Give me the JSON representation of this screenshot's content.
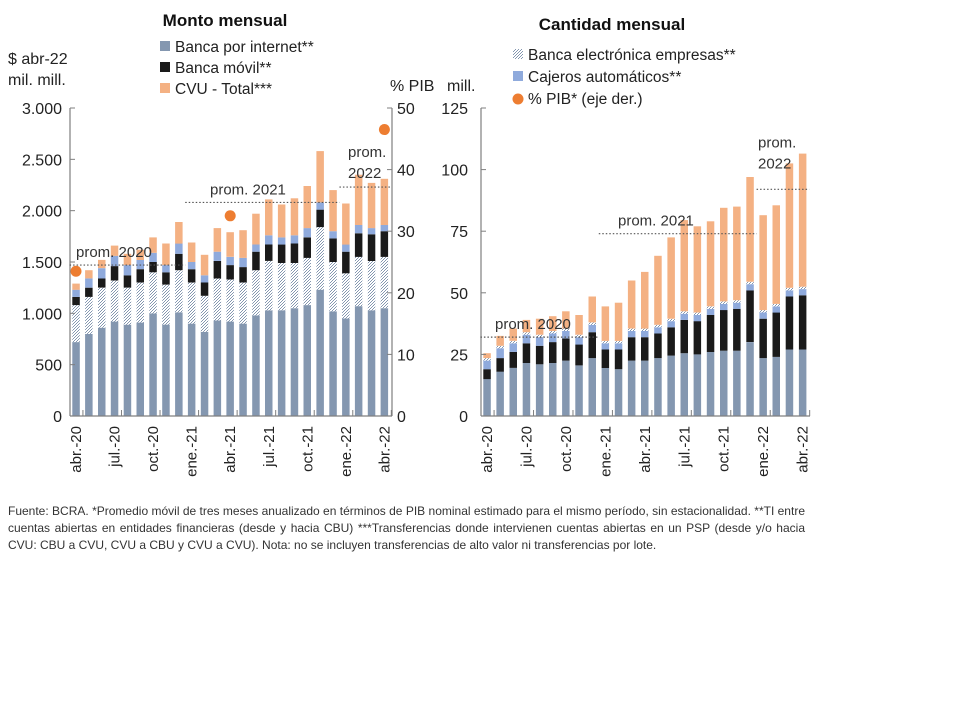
{
  "chart_data": [
    {
      "type": "bar",
      "stacked": true,
      "title": "Monto mensual",
      "ylabel": "$ abr-22 mil. mill.",
      "y2label": "% PIB",
      "ylim": [
        0,
        3000
      ],
      "y2lim": [
        0,
        50
      ],
      "yticks": [
        "0",
        "500",
        "1.000",
        "1.500",
        "2.000",
        "2.500",
        "3.000"
      ],
      "y2ticks": [
        "0",
        "10",
        "20",
        "30",
        "40",
        "50"
      ],
      "categories": [
        "abr.-20",
        "may.-20",
        "jun.-20",
        "jul.-20",
        "ago.-20",
        "sep.-20",
        "oct.-20",
        "nov.-20",
        "dic.-20",
        "ene.-21",
        "feb.-21",
        "mar.-21",
        "abr.-21",
        "may.-21",
        "jun.-21",
        "jul.-21",
        "ago.-21",
        "sep.-21",
        "oct.-21",
        "nov.-21",
        "dic.-21",
        "ene.-22",
        "feb.-22",
        "mar.-22",
        "abr.-22"
      ],
      "xticklabels": [
        "abr.-20",
        "jul.-20",
        "oct.-20",
        "ene.-21",
        "abr.-21",
        "jul.-21",
        "oct.-21",
        "ene.-22",
        "abr.-22"
      ],
      "series": [
        {
          "name": "Banca por internet**",
          "values": [
            720,
            800,
            860,
            920,
            890,
            910,
            1000,
            890,
            1010,
            900,
            820,
            930,
            920,
            900,
            980,
            1030,
            1030,
            1050,
            1080,
            1230,
            1020,
            950,
            1070,
            1030,
            1050
          ]
        },
        {
          "name": "Banca electrónica empresas**",
          "values": [
            360,
            360,
            390,
            400,
            360,
            390,
            400,
            390,
            410,
            400,
            350,
            410,
            410,
            400,
            440,
            480,
            460,
            440,
            460,
            610,
            480,
            440,
            480,
            480,
            500
          ]
        },
        {
          "name": "Banca móvil**",
          "values": [
            80,
            90,
            90,
            140,
            120,
            130,
            100,
            120,
            160,
            130,
            130,
            170,
            140,
            150,
            180,
            160,
            180,
            190,
            200,
            170,
            230,
            210,
            230,
            260,
            250
          ]
        },
        {
          "name": "Cajeros automáticos**",
          "values": [
            70,
            90,
            100,
            100,
            100,
            90,
            90,
            70,
            100,
            70,
            70,
            90,
            80,
            90,
            70,
            90,
            70,
            80,
            90,
            70,
            70,
            70,
            80,
            60,
            60
          ]
        },
        {
          "name": "CVU - Total***",
          "values": [
            60,
            80,
            80,
            100,
            110,
            100,
            150,
            210,
            210,
            190,
            200,
            230,
            240,
            270,
            300,
            350,
            320,
            360,
            410,
            500,
            400,
            400,
            490,
            440,
            450
          ]
        }
      ],
      "secondary_series": {
        "name": "% PIB* (eje der.)",
        "points": [
          {
            "x": "abr.-20",
            "value": 23.5
          },
          {
            "x": "abr.-21",
            "value": 32.5
          },
          {
            "x": "abr.-22",
            "value": 46.5
          }
        ]
      },
      "annotations": [
        {
          "text": "prom. 2020",
          "value": 1470,
          "from": "abr.-20",
          "to": "dic.-20"
        },
        {
          "text": "prom. 2021",
          "value": 2080,
          "from": "ene.-21",
          "to": "dic.-21"
        },
        {
          "text": "prom. 2022",
          "value": 2230,
          "from": "ene.-22",
          "to": "abr.-22"
        }
      ]
    },
    {
      "type": "bar",
      "stacked": true,
      "title": "Cantidad mensual",
      "ylabel": "mill.",
      "ylim": [
        0,
        125
      ],
      "yticks": [
        "0",
        "25",
        "50",
        "75",
        "100",
        "125"
      ],
      "categories": [
        "abr.-20",
        "may.-20",
        "jun.-20",
        "jul.-20",
        "ago.-20",
        "sep.-20",
        "oct.-20",
        "nov.-20",
        "dic.-20",
        "ene.-21",
        "feb.-21",
        "mar.-21",
        "abr.-21",
        "may.-21",
        "jun.-21",
        "jul.-21",
        "ago.-21",
        "sep.-21",
        "oct.-21",
        "nov.-21",
        "dic.-21",
        "ene.-22",
        "feb.-22",
        "mar.-22",
        "abr.-22"
      ],
      "xticklabels": [
        "abr.-20",
        "jul.-20",
        "oct.-20",
        "ene.-21",
        "abr.-21",
        "jul.-21",
        "oct.-21",
        "ene.-22",
        "abr.-22"
      ],
      "series": [
        {
          "name": "Banca por internet**",
          "values": [
            15,
            18,
            19.5,
            21.5,
            21,
            21.5,
            22.5,
            20.5,
            23.5,
            19.5,
            19,
            22.5,
            22.5,
            23.5,
            24.5,
            25.5,
            25,
            26,
            26.5,
            26.5,
            30,
            23.5,
            24,
            27,
            27
          ]
        },
        {
          "name": "Banca móvil**",
          "values": [
            4,
            5.5,
            6.5,
            8,
            7.5,
            8.5,
            9,
            8.5,
            10.5,
            7.5,
            8,
            9.5,
            9.5,
            10,
            11.5,
            13.5,
            13.5,
            15,
            16.5,
            17,
            21,
            16,
            18,
            21.5,
            22
          ]
        },
        {
          "name": "Cajeros automáticos**",
          "values": [
            3.5,
            4,
            3.5,
            3.5,
            3.5,
            3.5,
            3,
            3,
            3,
            2.5,
            2.5,
            2.5,
            2.5,
            2.5,
            2.5,
            2.5,
            2.5,
            2.5,
            2.5,
            2.5,
            2.5,
            2.5,
            2.5,
            2.5,
            2.5
          ]
        },
        {
          "name": "Banca electrónica empresas**",
          "values": [
            1,
            1,
            1,
            1,
            1,
            1,
            1,
            1,
            1,
            1,
            1,
            1,
            1,
            1,
            1,
            1,
            1,
            1,
            1,
            1,
            1,
            1,
            1,
            1,
            1
          ]
        },
        {
          "name": "CVU - Total***",
          "values": [
            2,
            4,
            5,
            5,
            6.5,
            6,
            7,
            8,
            10.5,
            14,
            15.5,
            19.5,
            23,
            28,
            33,
            37,
            35,
            34.5,
            38,
            38,
            42.5,
            38.5,
            40,
            50.5,
            54
          ]
        }
      ],
      "annotations": [
        {
          "text": "prom. 2020",
          "value": 32,
          "from": "abr.-20",
          "to": "dic.-20"
        },
        {
          "text": "prom. 2021",
          "value": 74,
          "from": "ene.-21",
          "to": "dic.-21"
        },
        {
          "text": "prom. 2022",
          "value": 92,
          "from": "ene.-22",
          "to": "abr.-22"
        }
      ]
    }
  ],
  "legend_left": [
    {
      "label": "Banca por internet**",
      "swatch": "square",
      "color": "#8497b0"
    },
    {
      "label": "Banca móvil**",
      "swatch": "square",
      "color": "#1a1a1a"
    },
    {
      "label": "CVU - Total***",
      "swatch": "square",
      "color": "#f4b183"
    }
  ],
  "legend_right": [
    {
      "label": "Banca electrónica empresas**",
      "swatch": "hatch",
      "color": "#8497b0"
    },
    {
      "label": "Cajeros automáticos**",
      "swatch": "square",
      "color": "#8faadc"
    },
    {
      "label": "% PIB* (eje der.)",
      "swatch": "circle",
      "color": "#ed7d31"
    }
  ],
  "colors": {
    "internet": "#8497b0",
    "electronica": "#8497b0",
    "movil": "#1a1a1a",
    "cajeros": "#8faadc",
    "cvu": "#f4b183",
    "pib": "#ed7d31",
    "axis": "#7f7f7f"
  },
  "footnote": "Fuente: BCRA. *Promedio móvil de tres meses anualizado en términos de PIB nominal estimado para el mismo período, sin estacionalidad. **TI entre cuentas abiertas en entidades financieras (desde y hacia CBU) ***Transferencias donde intervienen cuentas abiertas en un PSP (desde y/o hacia CVU: CBU a CVU, CVU a CBU y CVU a CVU). Nota: no se incluyen transferencias de alto valor ni transferencias por lote."
}
